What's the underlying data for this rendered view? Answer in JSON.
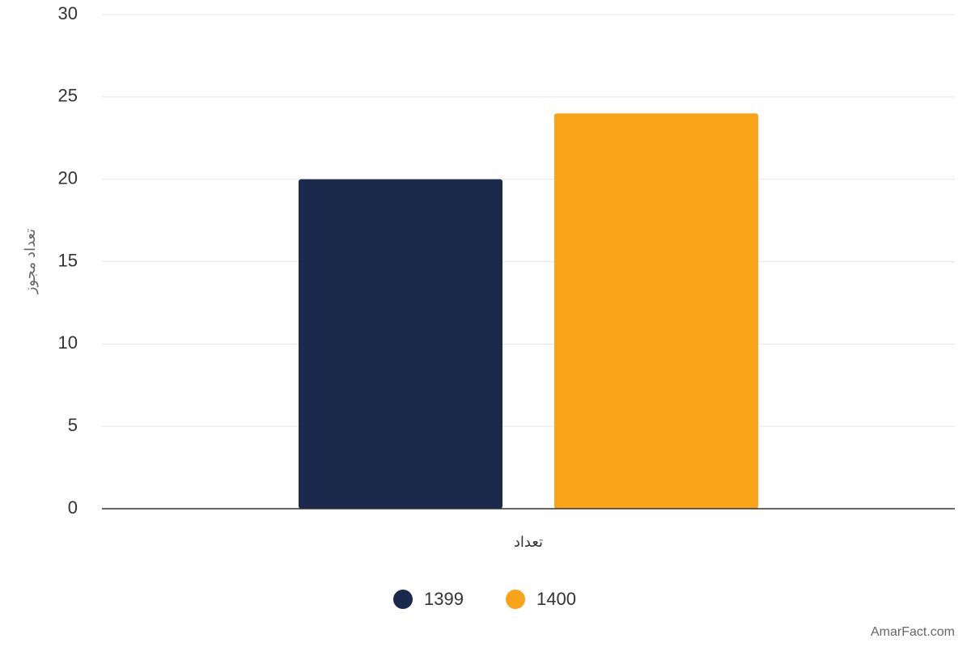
{
  "chart_data": {
    "type": "bar",
    "categories": [
      "تعداد"
    ],
    "y_label": "تعداد مجوز",
    "series": [
      {
        "name": "1399",
        "color": "#1b2a4c",
        "values": [
          20
        ]
      },
      {
        "name": "1400",
        "color": "#f9a318",
        "values": [
          24
        ]
      }
    ],
    "ylim": [
      0,
      30
    ],
    "yticks": [
      0,
      5,
      10,
      15,
      20,
      25,
      30
    ],
    "grid": true,
    "legend": "bottom",
    "credit": "AmarFact.com"
  }
}
